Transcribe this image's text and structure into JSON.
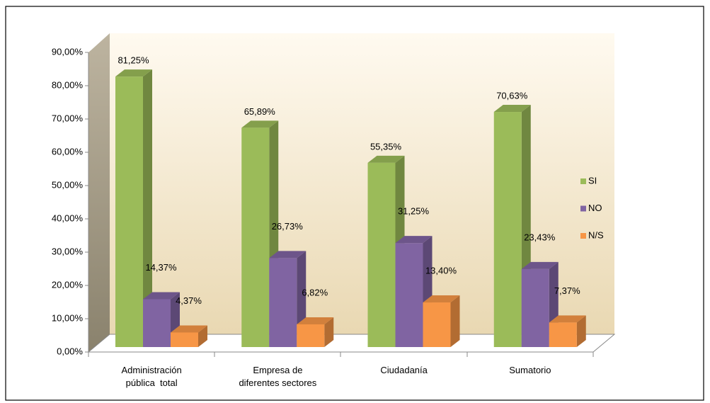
{
  "chart_data": {
    "type": "bar3d",
    "categories": [
      "Administración\npública  total",
      "Empresa de\ndiferentes sectores",
      "Ciudadanía",
      "Sumatorio"
    ],
    "series": [
      {
        "name": "SI",
        "color": "#9bbb59",
        "values": [
          81.25,
          65.89,
          55.35,
          70.63
        ],
        "value_labels": [
          "81,25%",
          "65,89%",
          "55,35%",
          "70,63%"
        ]
      },
      {
        "name": "NO",
        "color": "#8064a2",
        "values": [
          14.37,
          26.73,
          31.25,
          23.43
        ],
        "value_labels": [
          "14,37%",
          "26,73%",
          "31,25%",
          "23,43%"
        ]
      },
      {
        "name": "N/S",
        "color": "#f79646",
        "values": [
          4.37,
          6.82,
          13.4,
          7.37
        ],
        "value_labels": [
          "4,37%",
          "6,82%",
          "13,40%",
          "7,37%"
        ]
      }
    ],
    "ylim": [
      0,
      90
    ],
    "yticks": [
      {
        "value": 0,
        "label": "0,00%"
      },
      {
        "value": 10,
        "label": "10,00%"
      },
      {
        "value": 20,
        "label": "20,00%"
      },
      {
        "value": 30,
        "label": "30,00%"
      },
      {
        "value": 40,
        "label": "40,00%"
      },
      {
        "value": 50,
        "label": "50,00%"
      },
      {
        "value": 60,
        "label": "60,00%"
      },
      {
        "value": 70,
        "label": "70,00%"
      },
      {
        "value": 80,
        "label": "80,00%"
      },
      {
        "value": 90,
        "label": "90,00%"
      }
    ],
    "legend": "right"
  }
}
